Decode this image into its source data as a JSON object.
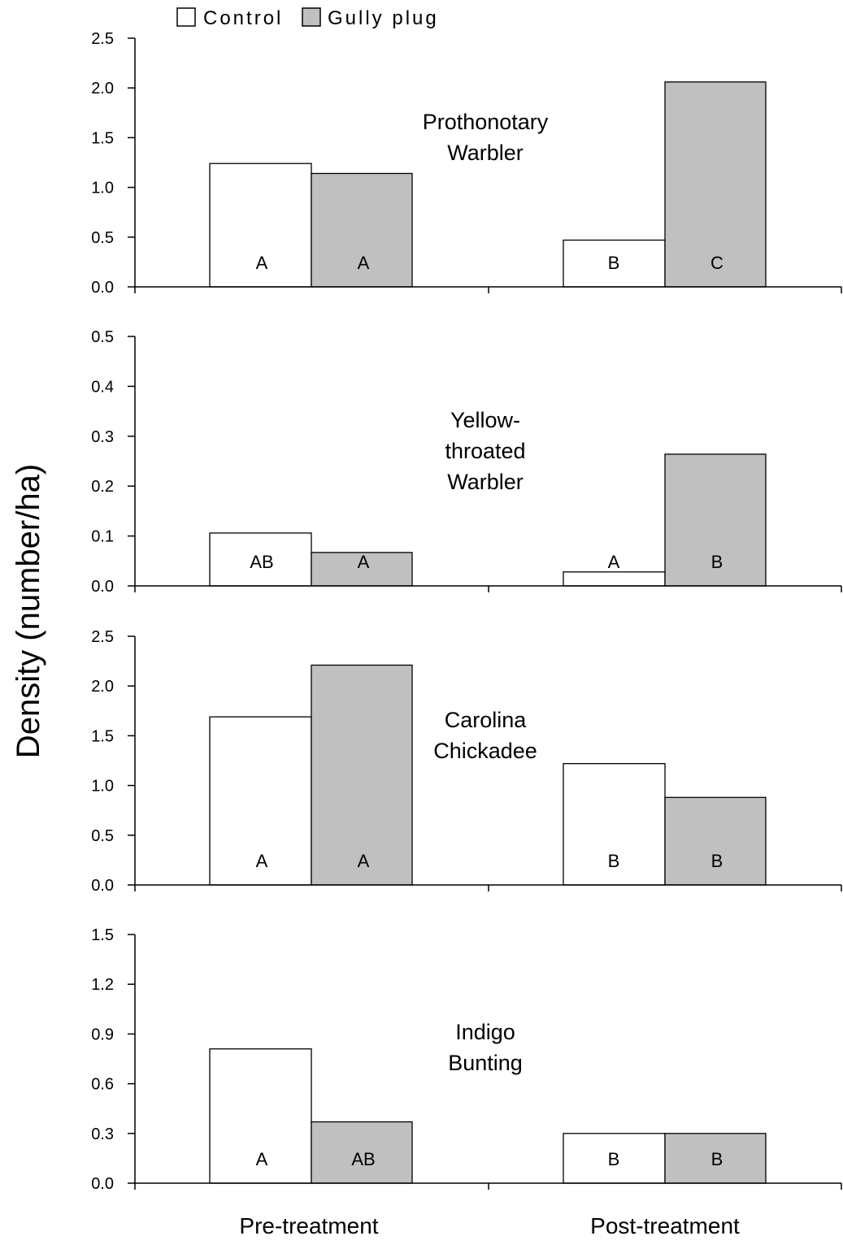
{
  "chart_data": {
    "type": "bar",
    "ylabel": "Density (number/ha)",
    "categories": [
      "Pre-treatment",
      "Post-treatment"
    ],
    "legend": {
      "placement": "top-left",
      "entries": [
        {
          "name": "Control",
          "color": "#ffffff"
        },
        {
          "name": "Gully plug",
          "color": "#c0c0c0"
        }
      ]
    },
    "panels": [
      {
        "species": [
          "Prothonotary",
          "Warbler"
        ],
        "ylim": [
          0,
          2.5
        ],
        "ticks": [
          "0.0",
          "0.5",
          "1.0",
          "1.5",
          "2.0",
          "2.5"
        ],
        "tick_values": [
          0,
          0.5,
          1.0,
          1.5,
          2.0,
          2.5
        ],
        "series": [
          {
            "name": "Control",
            "values": [
              1.24,
              0.47
            ],
            "letters": [
              "A",
              "B"
            ]
          },
          {
            "name": "Gully plug",
            "values": [
              1.14,
              2.06
            ],
            "letters": [
              "A",
              "C"
            ]
          }
        ]
      },
      {
        "species": [
          "Yellow-",
          "throated",
          "Warbler"
        ],
        "ylim": [
          0,
          0.5
        ],
        "ticks": [
          "0.0",
          "0.1",
          "0.2",
          "0.3",
          "0.4",
          "0.5"
        ],
        "tick_values": [
          0,
          0.1,
          0.2,
          0.3,
          0.4,
          0.5
        ],
        "series": [
          {
            "name": "Control",
            "values": [
              0.106,
              0.028
            ],
            "letters": [
              "AB",
              "A"
            ]
          },
          {
            "name": "Gully plug",
            "values": [
              0.067,
              0.264
            ],
            "letters": [
              "A",
              "B"
            ]
          }
        ]
      },
      {
        "species": [
          "Carolina",
          "Chickadee"
        ],
        "ylim": [
          0,
          2.5
        ],
        "ticks": [
          "0.0",
          "0.5",
          "1.0",
          "1.5",
          "2.0",
          "2.5"
        ],
        "tick_values": [
          0,
          0.5,
          1.0,
          1.5,
          2.0,
          2.5
        ],
        "series": [
          {
            "name": "Control",
            "values": [
              1.69,
              1.22
            ],
            "letters": [
              "A",
              "B"
            ]
          },
          {
            "name": "Gully plug",
            "values": [
              2.21,
              0.88
            ],
            "letters": [
              "A",
              "B"
            ]
          }
        ]
      },
      {
        "species": [
          "Indigo",
          "Bunting"
        ],
        "ylim": [
          0,
          1.5
        ],
        "ticks": [
          "0.0",
          "0.3",
          "0.6",
          "0.9",
          "1.2",
          "1.5"
        ],
        "tick_values": [
          0,
          0.3,
          0.6,
          0.9,
          1.2,
          1.5
        ],
        "series": [
          {
            "name": "Control",
            "values": [
              0.81,
              0.3
            ],
            "letters": [
              "A",
              "B"
            ]
          },
          {
            "name": "Gully plug",
            "values": [
              0.37,
              0.3
            ],
            "letters": [
              "AB",
              "B"
            ]
          }
        ]
      }
    ]
  }
}
